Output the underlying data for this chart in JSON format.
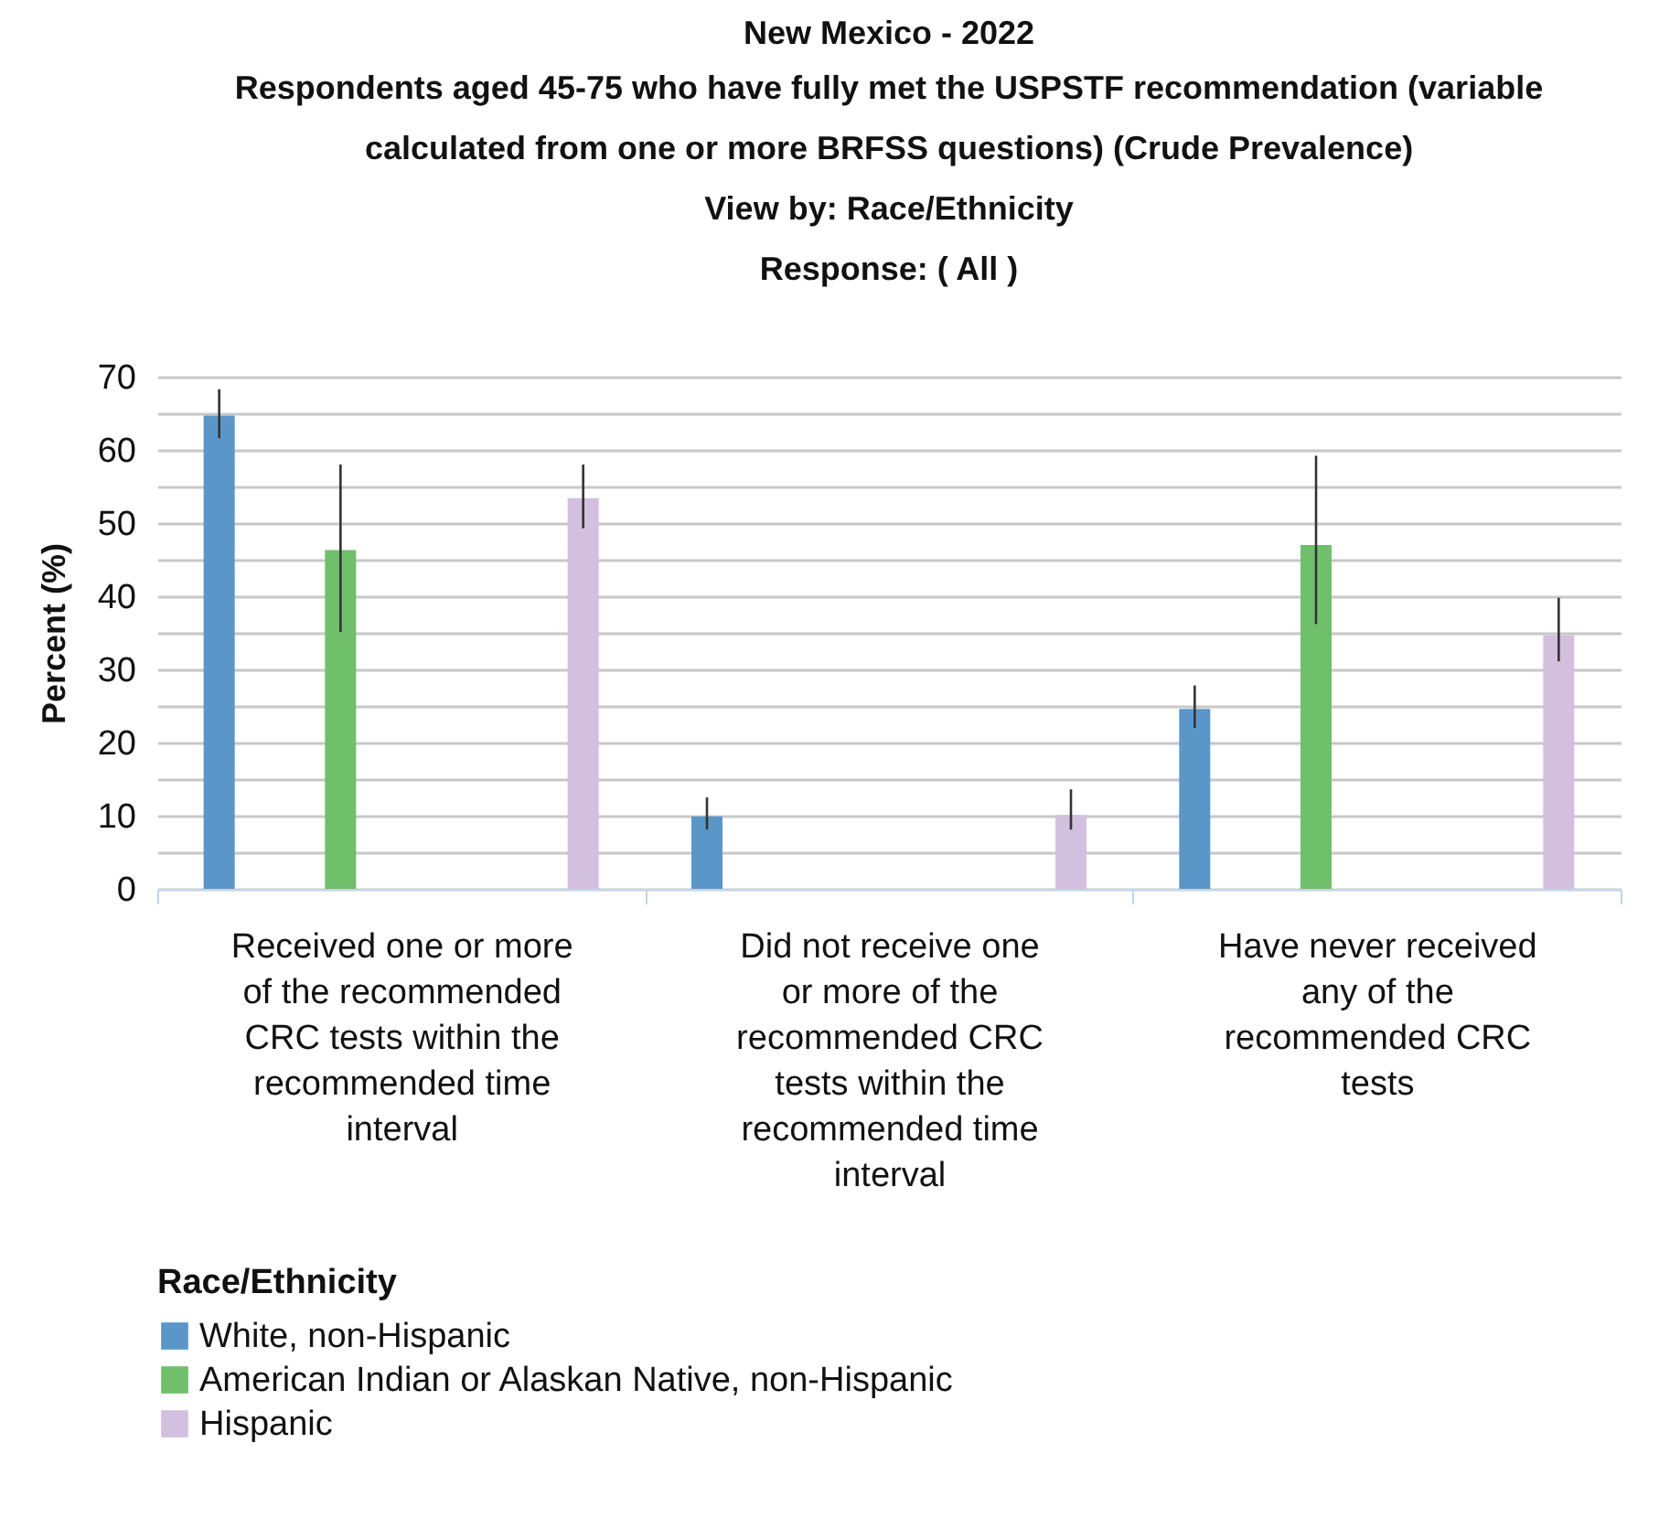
{
  "chart_data": {
    "type": "bar",
    "title": "New Mexico - 2022",
    "subtitle": "Respondents aged 45-75 who have fully met the USPSTF recommendation (variable calculated from one or more BRFSS questions) (Crude Prevalence)",
    "annotations": [
      "View by: Race/Ethnicity",
      "Response: ( All )"
    ],
    "ylabel": "Percent (%)",
    "legend_title": "Race/Ethnicity",
    "legend": "bottom",
    "grid": "y",
    "categories": [
      "Received one or more of the recommended CRC tests within the recommended time interval",
      "Did not receive one or more of the recommended CRC tests within the recommended time interval",
      "Have never received any of the recommended CRC tests"
    ],
    "ylim": [
      0,
      70
    ],
    "yticks": [
      0,
      {
        "value": 5,
        "label": null
      },
      10,
      {
        "value": 15,
        "label": null
      },
      20,
      {
        "value": 25,
        "label": null
      },
      30,
      {
        "value": 35,
        "label": null
      },
      40,
      {
        "value": 45,
        "label": null
      },
      50,
      {
        "value": 55,
        "label": null
      },
      60,
      {
        "value": 65,
        "label": null
      },
      70
    ],
    "series": [
      {
        "name": "White, non-Hispanic",
        "color": "#5b96c8",
        "values": [
          64.7,
          9.9,
          24.6
        ],
        "errors": [
          [
            61.6,
            68.3
          ],
          [
            8.1,
            12.5
          ],
          [
            22.0,
            27.8
          ]
        ]
      },
      {
        "name": "American Indian or Alaskan Native, non-Hispanic",
        "color": "#70bf6a",
        "values": [
          46.3,
          null,
          47.0
        ],
        "errors": [
          [
            35.1,
            58.0
          ],
          null,
          [
            36.2,
            59.2
          ]
        ]
      },
      {
        "values": [
          null,
          null,
          null
        ]
      },
      {
        "name": "Hispanic",
        "color": "#d3bfde",
        "values": [
          53.4,
          10.1,
          34.7
        ],
        "errors": [
          [
            49.3,
            58.0
          ],
          [
            8.1,
            13.6
          ],
          [
            31.1,
            39.8
          ]
        ]
      }
    ]
  }
}
